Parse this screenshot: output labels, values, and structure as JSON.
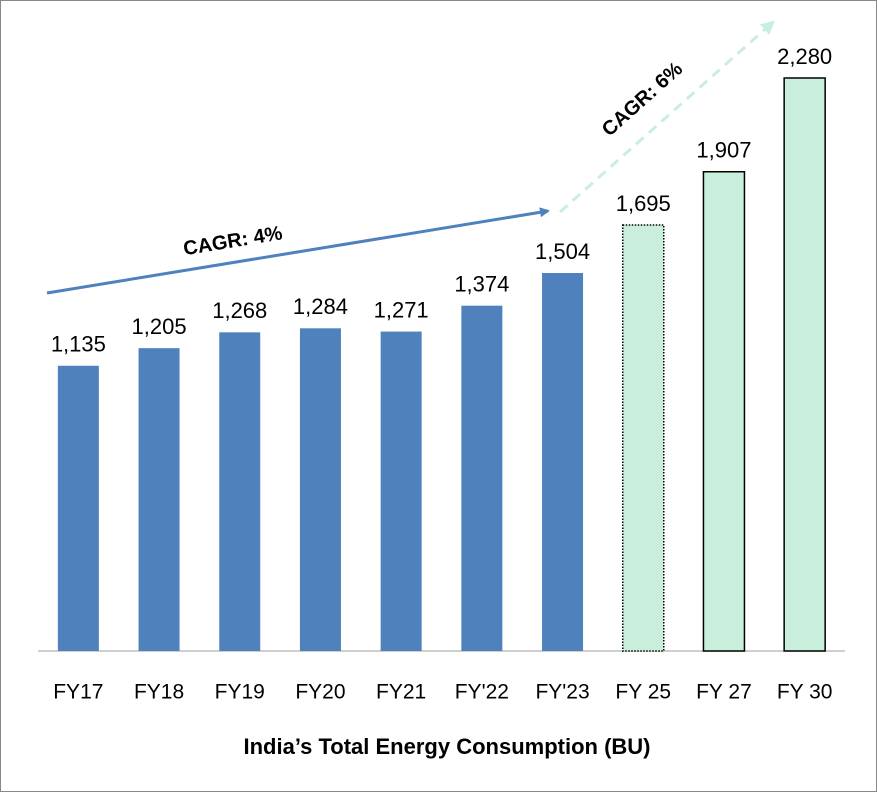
{
  "chart_data": {
    "type": "bar",
    "title": "India’s Total Energy Consumption  (BU)",
    "categories": [
      "FY17",
      "FY18",
      "FY19",
      "FY20",
      "FY21",
      "FY'22",
      "FY'23",
      "FY 25",
      "FY 27",
      "FY 30"
    ],
    "values": [
      1135,
      1205,
      1268,
      1284,
      1271,
      1374,
      1504,
      1695,
      1907,
      2280
    ],
    "value_labels": [
      "1,135",
      "1,205",
      "1,268",
      "1,284",
      "1,271",
      "1,374",
      "1,504",
      "1,695",
      "1,907",
      "2,280"
    ],
    "colors": [
      "#4f81bd",
      "#4f81bd",
      "#4f81bd",
      "#4f81bd",
      "#4f81bd",
      "#4f81bd",
      "#4f81bd",
      "#c9efdc",
      "#c9efdc",
      "#c9efdc"
    ],
    "edgecolors": [
      "none",
      "none",
      "none",
      "none",
      "none",
      "none",
      "none",
      "#000000",
      "#000000",
      "#000000"
    ],
    "ylim": [
      0,
      2280
    ],
    "annotations": [
      "CAGR: 4%",
      "CAGR: 6%"
    ]
  }
}
